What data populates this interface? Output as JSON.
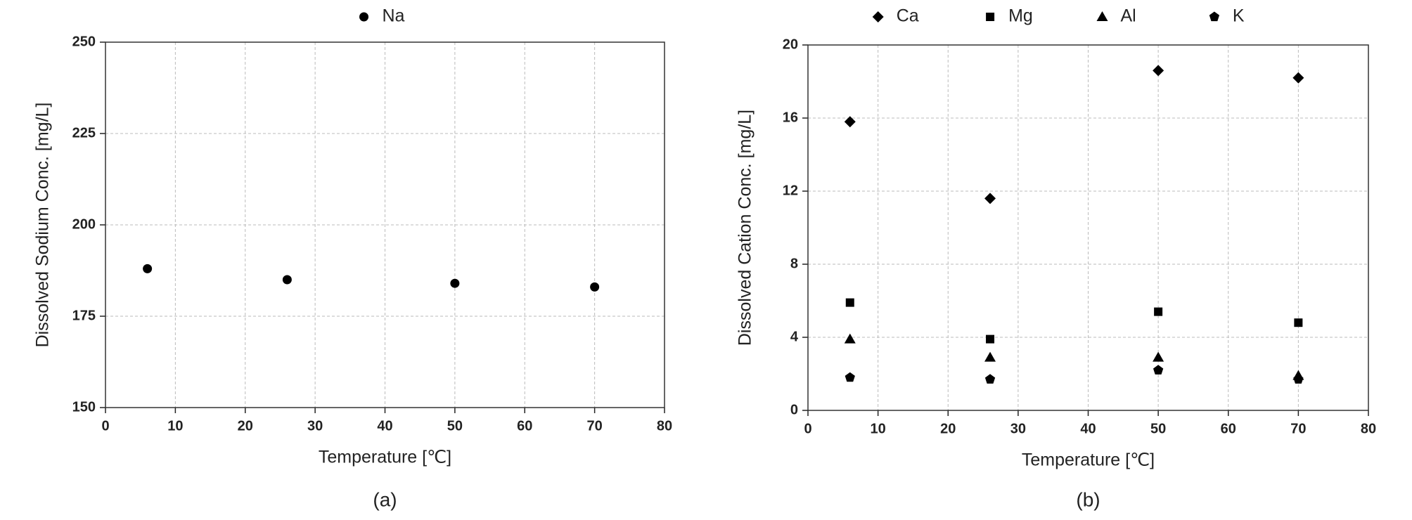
{
  "chart_data": [
    {
      "type": "scatter",
      "caption": "(a)",
      "x_label": "Temperature [℃]",
      "y_label": "Dissolved Sodium Conc. [mg/L]",
      "x": [
        6,
        26,
        50,
        70
      ],
      "series": [
        {
          "name": "Na",
          "color": "#000000",
          "marker": "circle",
          "values": [
            188,
            185,
            184,
            183
          ]
        }
      ],
      "xlim": [
        0,
        80
      ],
      "xticks": [
        0,
        10,
        20,
        30,
        40,
        50,
        60,
        70,
        80
      ],
      "ylim": [
        150,
        250
      ],
      "yticks": [
        150,
        175,
        200,
        225,
        250
      ],
      "grid": true
    },
    {
      "type": "scatter",
      "caption": "(b)",
      "x_label": "Temperature [℃]",
      "y_label": "Dissolved Cation Conc. [mg/L]",
      "x": [
        6,
        26,
        50,
        70
      ],
      "series": [
        {
          "name": "Ca",
          "color": "#000000",
          "marker": "diamond",
          "values": [
            15.8,
            11.6,
            18.6,
            18.2
          ]
        },
        {
          "name": "Mg",
          "color": "#000000",
          "marker": "square",
          "values": [
            5.9,
            3.9,
            5.4,
            4.8
          ]
        },
        {
          "name": "Al",
          "color": "#000000",
          "marker": "triangle",
          "values": [
            3.9,
            2.9,
            2.9,
            1.9
          ]
        },
        {
          "name": "K",
          "color": "#000000",
          "marker": "pentagon",
          "values": [
            1.8,
            1.7,
            2.2,
            1.7
          ]
        }
      ],
      "xlim": [
        0,
        80
      ],
      "xticks": [
        0,
        10,
        20,
        30,
        40,
        50,
        60,
        70,
        80
      ],
      "ylim": [
        0,
        20
      ],
      "yticks": [
        0,
        4,
        8,
        12,
        16,
        20
      ],
      "grid": true
    }
  ]
}
